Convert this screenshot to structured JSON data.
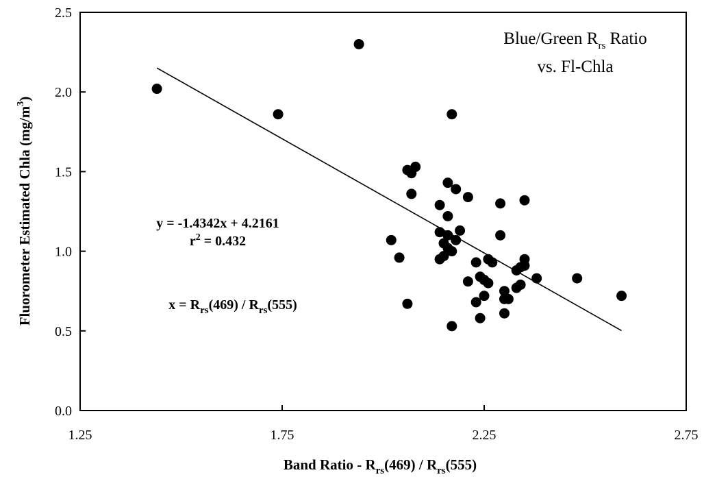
{
  "chart_data": {
    "type": "scatter",
    "title": {
      "line1_pre": "Blue/Green R",
      "line1_sub": "rs",
      "line1_post": " Ratio",
      "line2": "vs. Fl-Chla"
    },
    "xlabel": {
      "pre": "Band Ratio - R",
      "sub1": "rs",
      "mid": "(469) / R",
      "sub2": "rs",
      "post": "(555)"
    },
    "ylabel": {
      "pre": "Fluorometer Estimated Chla (mg/m",
      "sup": "3",
      "post": ")"
    },
    "xlim": [
      1.25,
      2.75
    ],
    "ylim": [
      0.0,
      2.5
    ],
    "x_ticks": [
      "1.25",
      "1.75",
      "2.25",
      "2.75"
    ],
    "y_ticks": [
      "0.0",
      "0.5",
      "1.0",
      "1.5",
      "2.0",
      "2.5"
    ],
    "grid": false,
    "legend": "none",
    "equation": {
      "line1": "y = -1.4342x + 4.2161",
      "r2_pre": "r",
      "r2_sup": "2",
      "r2_post": " = 0.432"
    },
    "x_def": {
      "pre": "x = R",
      "sub1": "rs",
      "mid": "(469) / R",
      "sub2": "rs",
      "post": "(555)"
    },
    "trendline": {
      "slope": -1.4342,
      "intercept": 4.2161,
      "x_range": [
        1.44,
        2.59
      ]
    },
    "series": [
      {
        "marker_color": "#000000",
        "points": [
          [
            1.44,
            2.02
          ],
          [
            1.74,
            1.86
          ],
          [
            1.94,
            2.3
          ],
          [
            2.17,
            1.86
          ],
          [
            2.06,
            1.51
          ],
          [
            2.08,
            1.53
          ],
          [
            2.07,
            1.49
          ],
          [
            2.16,
            1.43
          ],
          [
            2.18,
            1.39
          ],
          [
            2.07,
            1.36
          ],
          [
            2.21,
            1.34
          ],
          [
            2.29,
            1.3
          ],
          [
            2.35,
            1.32
          ],
          [
            2.14,
            1.29
          ],
          [
            2.16,
            1.22
          ],
          [
            2.02,
            1.07
          ],
          [
            2.04,
            0.96
          ],
          [
            2.14,
            1.12
          ],
          [
            2.19,
            1.13
          ],
          [
            2.16,
            1.1
          ],
          [
            2.18,
            1.07
          ],
          [
            2.15,
            1.05
          ],
          [
            2.16,
            1.02
          ],
          [
            2.17,
            1.0
          ],
          [
            2.15,
            0.97
          ],
          [
            2.14,
            0.95
          ],
          [
            2.29,
            1.1
          ],
          [
            2.26,
            0.95
          ],
          [
            2.27,
            0.93
          ],
          [
            2.23,
            0.93
          ],
          [
            2.34,
            0.9
          ],
          [
            2.35,
            0.95
          ],
          [
            2.35,
            0.91
          ],
          [
            2.33,
            0.88
          ],
          [
            2.24,
            0.84
          ],
          [
            2.25,
            0.82
          ],
          [
            2.26,
            0.8
          ],
          [
            2.21,
            0.81
          ],
          [
            2.38,
            0.83
          ],
          [
            2.48,
            0.83
          ],
          [
            2.33,
            0.77
          ],
          [
            2.34,
            0.79
          ],
          [
            2.3,
            0.75
          ],
          [
            2.23,
            0.68
          ],
          [
            2.25,
            0.72
          ],
          [
            2.3,
            0.7
          ],
          [
            2.31,
            0.7
          ],
          [
            2.06,
            0.67
          ],
          [
            2.24,
            0.58
          ],
          [
            2.3,
            0.61
          ],
          [
            2.17,
            0.53
          ],
          [
            2.59,
            0.72
          ]
        ]
      }
    ]
  }
}
